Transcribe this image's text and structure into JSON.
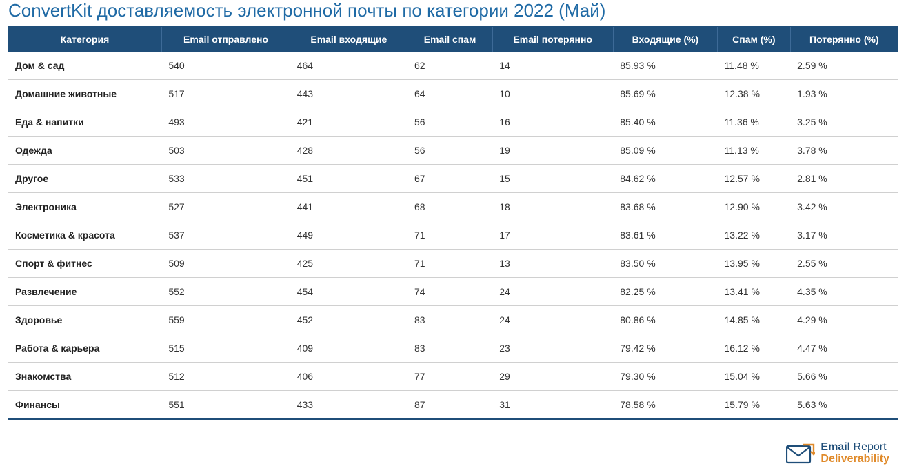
{
  "title": "ConvertKit доставляемость электронной почты по категории 2022 (Май)",
  "table": {
    "type": "table",
    "header_bg": "#1f4e79",
    "header_text_color": "#ffffff",
    "row_border_color": "#d0d0d0",
    "title_color": "#1f6aa5",
    "columns": [
      "Категория",
      "Email отправлено",
      "Email входящие",
      "Email спам",
      "Email потерянно",
      "Входящие (%)",
      "Спам (%)",
      "Потерянно (%)"
    ],
    "rows": [
      [
        "Дом & сад",
        "540",
        "464",
        "62",
        "14",
        "85.93 %",
        "11.48 %",
        "2.59 %"
      ],
      [
        "Домашние животные",
        "517",
        "443",
        "64",
        "10",
        "85.69 %",
        "12.38 %",
        "1.93 %"
      ],
      [
        "Еда & напитки",
        "493",
        "421",
        "56",
        "16",
        "85.40 %",
        "11.36 %",
        "3.25 %"
      ],
      [
        "Одежда",
        "503",
        "428",
        "56",
        "19",
        "85.09 %",
        "11.13 %",
        "3.78 %"
      ],
      [
        "Другое",
        "533",
        "451",
        "67",
        "15",
        "84.62 %",
        "12.57 %",
        "2.81 %"
      ],
      [
        "Электроника",
        "527",
        "441",
        "68",
        "18",
        "83.68 %",
        "12.90 %",
        "3.42 %"
      ],
      [
        "Косметика & красота",
        "537",
        "449",
        "71",
        "17",
        "83.61 %",
        "13.22 %",
        "3.17 %"
      ],
      [
        "Спорт & фитнес",
        "509",
        "425",
        "71",
        "13",
        "83.50 %",
        "13.95 %",
        "2.55 %"
      ],
      [
        "Развлечение",
        "552",
        "454",
        "74",
        "24",
        "82.25 %",
        "13.41 %",
        "4.35 %"
      ],
      [
        "Здоровье",
        "559",
        "452",
        "83",
        "24",
        "80.86 %",
        "14.85 %",
        "4.29 %"
      ],
      [
        "Работа & карьера",
        "515",
        "409",
        "83",
        "23",
        "79.42 %",
        "16.12 %",
        "4.47 %"
      ],
      [
        "Знакомства",
        "512",
        "406",
        "77",
        "29",
        "79.30 %",
        "15.04 %",
        "5.66 %"
      ],
      [
        "Финансы",
        "551",
        "433",
        "87",
        "31",
        "78.58 %",
        "15.79 %",
        "5.63 %"
      ]
    ]
  },
  "footer": {
    "brand_word1": "Email",
    "brand_word2": "Report",
    "brand_word3": "Deliverability",
    "icon_color": "#1f4e79",
    "accent_color": "#e08a2a"
  }
}
